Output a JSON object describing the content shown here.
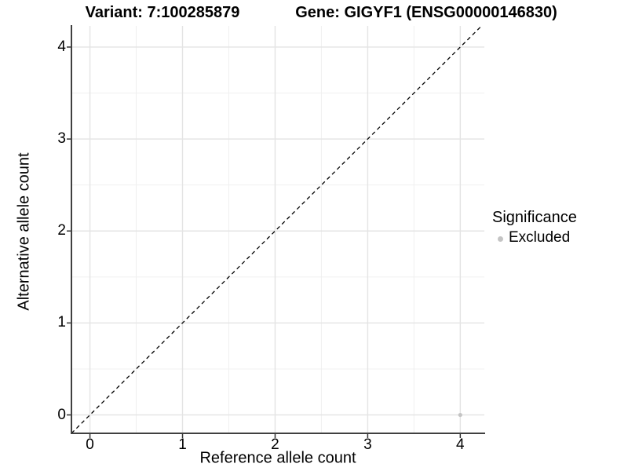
{
  "figure": {
    "title_left": "Variant: 7:100285879",
    "title_right": "Gene: GIGYF1 (ENSG00000146830)"
  },
  "chart_data": {
    "type": "scatter",
    "title_left": "Variant: 7:100285879",
    "title_right": "Gene: GIGYF1 (ENSG00000146830)",
    "xlabel": "Reference allele count",
    "ylabel": "Alternative allele count",
    "xlim": [
      -0.2,
      4.26
    ],
    "ylim": [
      -0.2,
      4.23
    ],
    "x_ticks": [
      0,
      1,
      2,
      3,
      4
    ],
    "y_ticks": [
      0,
      1,
      2,
      3,
      4
    ],
    "x_minor_ticks": [
      0.5,
      1.5,
      2.5,
      3.5
    ],
    "y_minor_ticks": [
      0.5,
      1.5,
      2.5,
      3.5
    ],
    "grid": true,
    "identity_line": {
      "style": "dashed",
      "from": [
        -0.2,
        -0.2
      ],
      "to": [
        4.43,
        4.43
      ],
      "color": "#000000"
    },
    "series": [
      {
        "name": "Excluded",
        "color": "#c4c4c4",
        "points": [
          {
            "x": 4,
            "y": 0
          }
        ]
      }
    ],
    "legend": {
      "title": "Significance",
      "position": "right",
      "items": [
        {
          "label": "Excluded",
          "color": "#c4c4c4"
        }
      ]
    },
    "colors": {
      "axis_line": "#404040",
      "tick_mark": "#333333",
      "grid_major": "#e4e4e4",
      "grid_minor": "#f0f0f0",
      "background": "#ffffff"
    }
  }
}
